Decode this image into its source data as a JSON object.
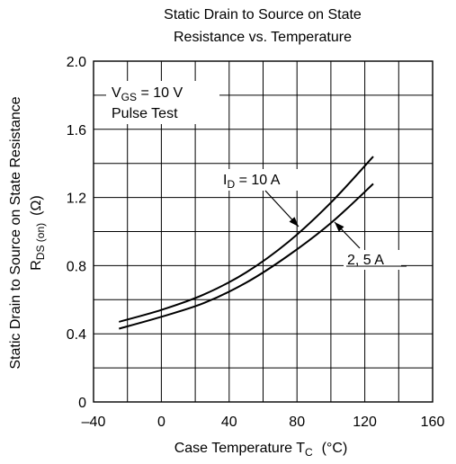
{
  "chart_data": {
    "type": "line",
    "title_lines": [
      "Static Drain to Source on State",
      "Resistance vs. Temperature"
    ],
    "xlabel": "Case Temperature  T",
    "xlabel_sub": "C",
    "xlabel_unit": "(°C)",
    "ylabel_line1": "Static Drain to Source on State Resistance",
    "ylabel_line2_main": "R",
    "ylabel_line2_sub": "DS (on)",
    "ylabel_line2_unit": "(Ω)",
    "xlim": [
      -40,
      160
    ],
    "ylim": [
      0,
      2.0
    ],
    "x_ticks": [
      -40,
      0,
      40,
      80,
      120,
      160
    ],
    "x_tick_labels": [
      "–40",
      "0",
      "40",
      "80",
      "120",
      "160"
    ],
    "x_grid_step": 20,
    "y_ticks": [
      0,
      0.4,
      0.8,
      1.2,
      1.6,
      2.0
    ],
    "y_tick_labels": [
      "0",
      "0.4",
      "0.8",
      "1.2",
      "1.6",
      "2.0"
    ],
    "y_grid_step": 0.2,
    "grid": true,
    "conditions": {
      "vgs_main": "V",
      "vgs_sub": "GS",
      "vgs_value": " = 10 V",
      "pulse": "Pulse Test"
    },
    "series": [
      {
        "label_main": "I",
        "label_sub": "D",
        "label_value": " = 10 A",
        "x": [
          -25,
          0,
          25,
          50,
          75,
          100,
          125
        ],
        "y": [
          0.47,
          0.54,
          0.63,
          0.76,
          0.94,
          1.17,
          1.44
        ]
      },
      {
        "label_text": "2, 5 A",
        "x": [
          -25,
          0,
          25,
          50,
          75,
          100,
          125
        ],
        "y": [
          0.43,
          0.5,
          0.58,
          0.7,
          0.86,
          1.05,
          1.28
        ]
      }
    ]
  }
}
